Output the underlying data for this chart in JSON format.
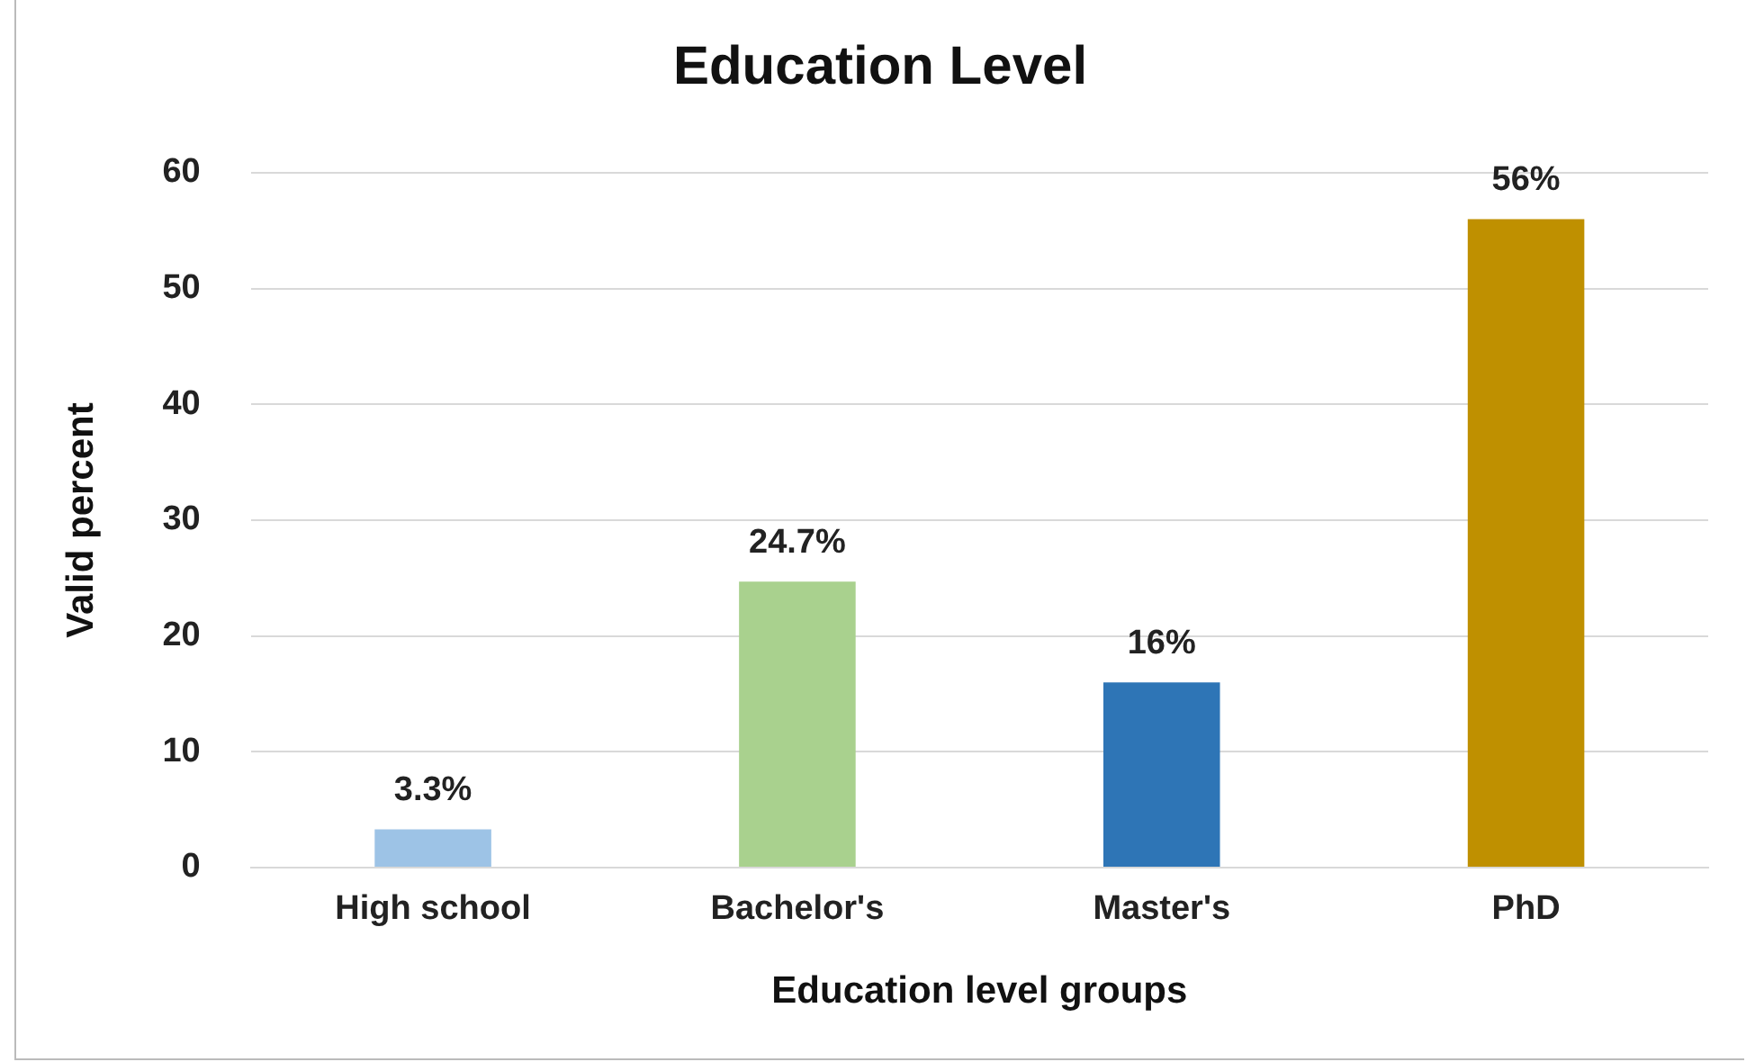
{
  "chart_data": {
    "type": "bar",
    "title": "Education Level",
    "xlabel": "Education level groups",
    "ylabel": "Valid percent",
    "categories": [
      "High school",
      "Bachelor's",
      "Master's",
      "PhD"
    ],
    "values": [
      3.3,
      24.7,
      16,
      56
    ],
    "colors": [
      "#9dc3e6",
      "#a9d18e",
      "#2e75b6",
      "#bf9000"
    ],
    "value_labels": [
      "3.3%",
      "24.7%",
      "16%",
      "56%"
    ],
    "ylim": [
      0,
      60
    ],
    "yticks": [
      0,
      10,
      20,
      30,
      40,
      50,
      60
    ],
    "grid": "y",
    "legend": false
  }
}
